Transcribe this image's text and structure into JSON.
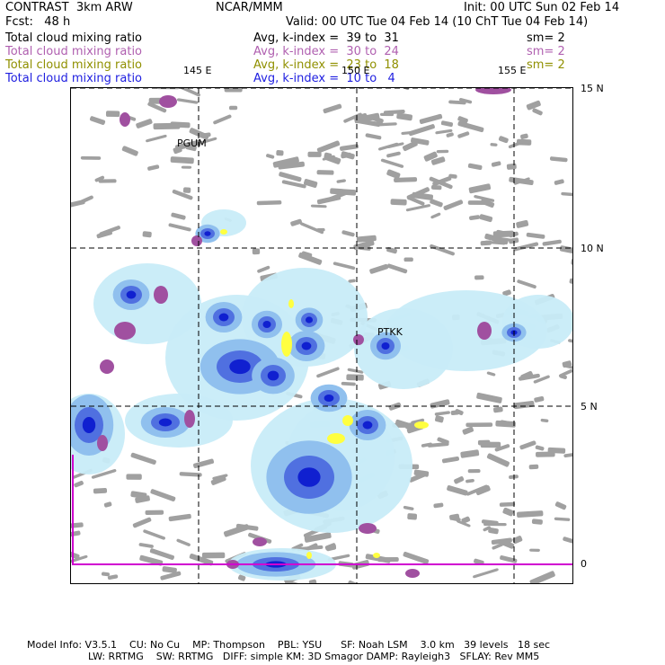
{
  "header": {
    "title_left": "CONTRAST  3km ARW",
    "title_center": "NCAR/MMM",
    "init": "Init: 00 UTC Sun 02 Feb 14",
    "fcst": "Fcst:   48 h",
    "valid": "Valid: 00 UTC Tue 04 Feb 14 (10 ChT Tue 04 Feb 14)"
  },
  "legend": [
    {
      "name": "Total cloud mixing ratio",
      "range": "Avg, k-index =  39 to  31",
      "sm": "sm= 2",
      "color": "#000000"
    },
    {
      "name": "Total cloud mixing ratio",
      "range": "Avg, k-index =  30 to  24",
      "sm": "sm= 2",
      "color": "#b060b0"
    },
    {
      "name": "Total cloud mixing ratio",
      "range": "Avg, k-index =  23 to  18",
      "sm": "sm= 2",
      "color": "#909000"
    },
    {
      "name": "Total cloud mixing ratio",
      "range": "Avg, k-index =  10 to   4",
      "sm": "",
      "color": "#2020e0"
    }
  ],
  "map": {
    "lon_labels": [
      "145 E",
      "150 E",
      "155 E"
    ],
    "lat_labels": [
      "15 N",
      "10 N",
      "5 N",
      "0"
    ],
    "stations": [
      "PGUM",
      "PTKK"
    ],
    "colors": {
      "low_cloud": "#a0a0a0",
      "mid_cloud": "#a050a0",
      "mid_high": "#ffff40",
      "high_light": "#c8ecf8",
      "high_mid": "#90c0ee",
      "high_strong": "#5070e0",
      "high_core": "#1020d0",
      "accent_line": "#d000d0"
    }
  },
  "footer": {
    "line1": "Model Info: V3.5.1    CU: No Cu    MP: Thompson    PBL: YSU      SF: Noah LSM    3.0 km   39 levels   18 sec",
    "line2": "LW: RRTMG    SW: RRTMG   DIFF: simple KM: 3D Smagor DAMP: Rayleigh3   SFLAY: Rev MM5"
  }
}
